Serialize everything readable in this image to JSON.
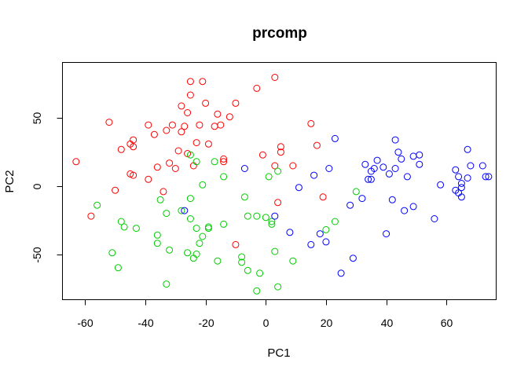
{
  "chart_data": {
    "type": "scatter",
    "title": "prcomp",
    "xlabel": "PC1",
    "ylabel": "PC2",
    "xlim": [
      -67.5,
      76.5
    ],
    "ylim": [
      -83.5,
      91.0
    ],
    "xticks": [
      -60,
      -40,
      -20,
      0,
      20,
      40,
      60
    ],
    "yticks": [
      -50,
      0,
      50
    ],
    "xtick_labels": [
      "-60",
      "-40",
      "-20",
      "0",
      "20",
      "40",
      "60"
    ],
    "ytick_labels": [
      "-50",
      "0",
      "50"
    ],
    "grid": false,
    "legend": "none",
    "marker": "open-circle",
    "series": [
      {
        "color": "#ff0000",
        "points": [
          [
            -63,
            18
          ],
          [
            -58,
            -22
          ],
          [
            -52,
            47
          ],
          [
            -50,
            -3
          ],
          [
            -48,
            27
          ],
          [
            -45,
            9
          ],
          [
            -45,
            31
          ],
          [
            -44,
            8
          ],
          [
            -44,
            34
          ],
          [
            -44,
            29
          ],
          [
            -39,
            45
          ],
          [
            -39,
            5
          ],
          [
            -37,
            38
          ],
          [
            -36,
            14
          ],
          [
            -34,
            -4
          ],
          [
            -33,
            41
          ],
          [
            -32,
            17
          ],
          [
            -31,
            45
          ],
          [
            -30,
            13
          ],
          [
            -29,
            26
          ],
          [
            -28,
            40
          ],
          [
            -28,
            59
          ],
          [
            -27,
            44
          ],
          [
            -26,
            24
          ],
          [
            -26,
            54
          ],
          [
            -25,
            67
          ],
          [
            -25,
            77
          ],
          [
            -24,
            15
          ],
          [
            -23,
            32
          ],
          [
            -22,
            45
          ],
          [
            -21,
            77
          ],
          [
            -20,
            61
          ],
          [
            -19,
            31
          ],
          [
            -17,
            44
          ],
          [
            -16,
            53
          ],
          [
            -15,
            45
          ],
          [
            -14,
            20
          ],
          [
            -14,
            18
          ],
          [
            -12,
            51
          ],
          [
            -10,
            61
          ],
          [
            -10,
            -43
          ],
          [
            -3,
            72
          ],
          [
            -1,
            23
          ],
          [
            3,
            15
          ],
          [
            3,
            80
          ],
          [
            4,
            -12
          ],
          [
            5,
            25
          ],
          [
            5,
            29
          ],
          [
            9,
            15
          ],
          [
            15,
            46
          ],
          [
            17,
            30
          ],
          [
            19,
            -8
          ]
        ]
      },
      {
        "color": "#00cd00",
        "points": [
          [
            -56,
            -14
          ],
          [
            -51,
            -49
          ],
          [
            -49,
            -60
          ],
          [
            -48,
            -26
          ],
          [
            -47,
            -30
          ],
          [
            -43,
            -31
          ],
          [
            -36,
            -36
          ],
          [
            -36,
            -42
          ],
          [
            -35,
            -10
          ],
          [
            -33,
            -20
          ],
          [
            -33,
            -72
          ],
          [
            -32,
            -47
          ],
          [
            -28,
            -18
          ],
          [
            -26,
            -49
          ],
          [
            -25,
            -9
          ],
          [
            -25,
            -24
          ],
          [
            -25,
            23
          ],
          [
            -24,
            -53
          ],
          [
            -23,
            -31
          ],
          [
            -23,
            -50
          ],
          [
            -23,
            18
          ],
          [
            -22,
            -42
          ],
          [
            -21,
            -37
          ],
          [
            -21,
            1
          ],
          [
            -19,
            -30
          ],
          [
            -19,
            -31
          ],
          [
            -17,
            18
          ],
          [
            -16,
            -55
          ],
          [
            -14,
            -28
          ],
          [
            -14,
            7
          ],
          [
            -8,
            -52
          ],
          [
            -8,
            -56
          ],
          [
            -7,
            -8
          ],
          [
            -6,
            -22
          ],
          [
            -6,
            -62
          ],
          [
            -3,
            -22
          ],
          [
            -3,
            -77
          ],
          [
            -2,
            -64
          ],
          [
            0,
            -23
          ],
          [
            1,
            7
          ],
          [
            2,
            -26
          ],
          [
            2,
            -28
          ],
          [
            3,
            -48
          ],
          [
            4,
            -74
          ],
          [
            4,
            11
          ],
          [
            9,
            -55
          ],
          [
            20,
            -32
          ],
          [
            23,
            -26
          ],
          [
            30,
            -4
          ]
        ]
      },
      {
        "color": "#0000ff",
        "points": [
          [
            -27,
            -18
          ],
          [
            -7,
            13
          ],
          [
            3,
            -22
          ],
          [
            8,
            -34
          ],
          [
            11,
            -1
          ],
          [
            15,
            -43
          ],
          [
            16,
            8
          ],
          [
            18,
            -35
          ],
          [
            20,
            -41
          ],
          [
            21,
            13
          ],
          [
            23,
            35
          ],
          [
            25,
            -64
          ],
          [
            28,
            -14
          ],
          [
            29,
            -53
          ],
          [
            32,
            -9
          ],
          [
            33,
            16
          ],
          [
            34,
            5
          ],
          [
            35,
            11
          ],
          [
            35,
            5
          ],
          [
            36,
            13
          ],
          [
            37,
            19
          ],
          [
            39,
            14
          ],
          [
            40,
            -35
          ],
          [
            41,
            9
          ],
          [
            42,
            -10
          ],
          [
            43,
            13
          ],
          [
            43,
            34
          ],
          [
            44,
            25
          ],
          [
            45,
            20
          ],
          [
            46,
            -18
          ],
          [
            47,
            7
          ],
          [
            49,
            22
          ],
          [
            49,
            -15
          ],
          [
            51,
            16
          ],
          [
            51,
            23
          ],
          [
            56,
            -24
          ],
          [
            58,
            1
          ],
          [
            63,
            -3
          ],
          [
            63,
            12
          ],
          [
            64,
            7
          ],
          [
            64,
            -5
          ],
          [
            65,
            -1
          ],
          [
            65,
            2
          ],
          [
            65,
            -8
          ],
          [
            67,
            27
          ],
          [
            67,
            6
          ],
          [
            68,
            15
          ],
          [
            72,
            15
          ],
          [
            73,
            7
          ],
          [
            74,
            7
          ]
        ]
      }
    ]
  }
}
